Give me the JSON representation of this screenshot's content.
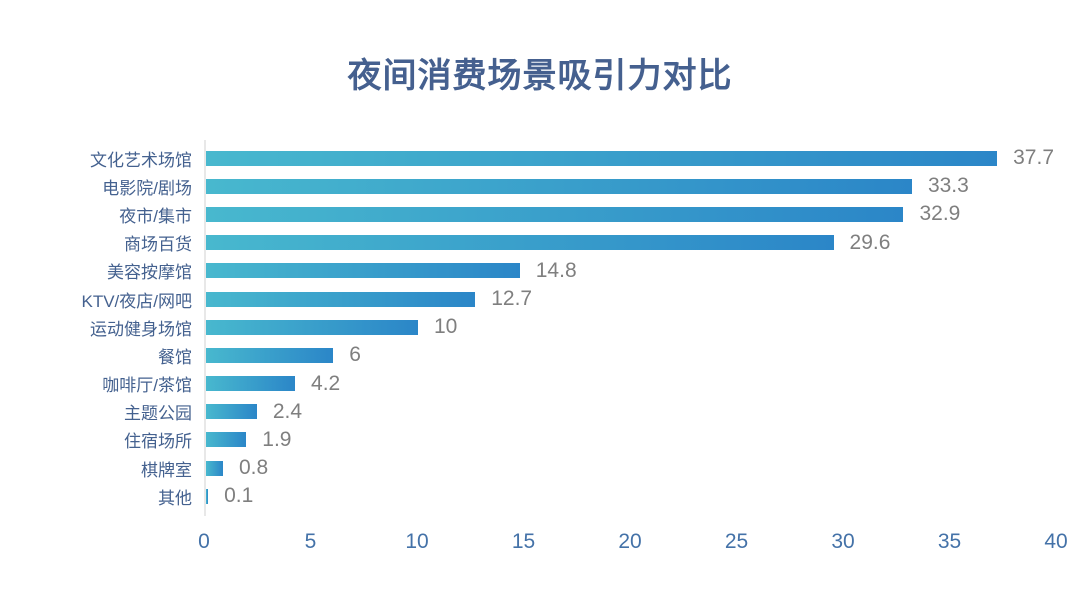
{
  "chart_data": {
    "type": "bar",
    "orientation": "horizontal",
    "title": "夜间消费场景吸引力对比",
    "categories": [
      "文化艺术场馆",
      "电影院/剧场",
      "夜市/集市",
      "商场百货",
      "美容按摩馆",
      "KTV/夜店/网吧",
      "运动健身场馆",
      "餐馆",
      "咖啡厅/茶馆",
      "主题公园",
      "住宿场所",
      "棋牌室",
      "其他"
    ],
    "values": [
      37.7,
      33.3,
      32.9,
      29.6,
      14.8,
      12.7,
      10,
      6,
      4.2,
      2.4,
      1.9,
      0.8,
      0.1
    ],
    "value_labels": [
      "37.7",
      "33.3",
      "32.9",
      "29.6",
      "14.8",
      "12.7",
      "10",
      "6",
      "4.2",
      "2.4",
      "1.9",
      "0.8",
      "0.1"
    ],
    "xlabel": "",
    "ylabel": "",
    "xlim": [
      0,
      40
    ],
    "xticks": [
      0,
      5,
      10,
      15,
      20,
      25,
      30,
      35,
      40
    ],
    "grid": false,
    "legend": "none",
    "colors": {
      "bar_gradient_start": "#48B8CE",
      "bar_gradient_end": "#2B86C8",
      "title": "#45608F",
      "category_label": "#44618F",
      "value_label": "#7F7F7F",
      "tick_label": "#4472A8",
      "axis_line": "#E8E8E8",
      "background": "#FFFFFF"
    }
  }
}
